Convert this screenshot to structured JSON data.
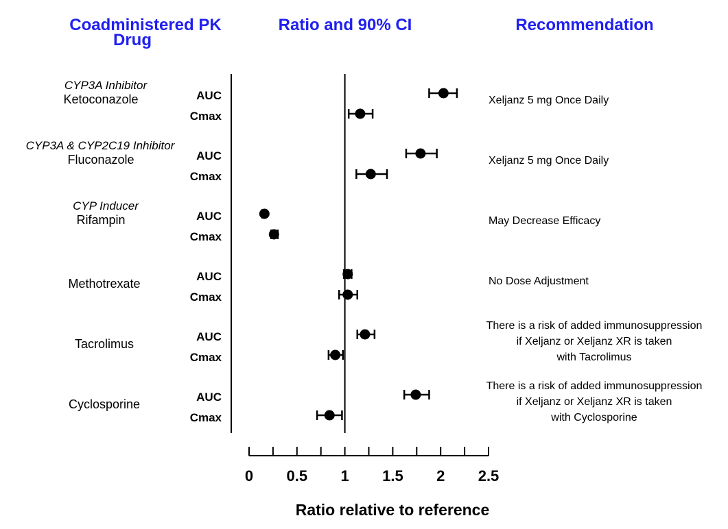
{
  "headers": {
    "drug_line1": "Coadministered PK",
    "drug_line2": "Drug",
    "ratio": "Ratio and 90% CI",
    "recommendation": "Recommendation"
  },
  "chart_data": {
    "type": "scatter",
    "xlabel": "Ratio relative to reference",
    "xlim": [
      0,
      2.5
    ],
    "xticks": [
      "0",
      "0.5",
      "1",
      "1.5",
      "2",
      "2.5"
    ],
    "minor_tick_step": 0.25,
    "reference_line": 1,
    "groups": [
      {
        "category": "CYP3A Inhibitor",
        "drug": "Ketoconazole",
        "recommendation": [
          "Xeljanz 5 mg Once Daily"
        ],
        "metrics": [
          {
            "label": "AUC",
            "ratio": 2.03,
            "ci": [
              1.88,
              2.17
            ]
          },
          {
            "label": "Cmax",
            "ratio": 1.16,
            "ci": [
              1.04,
              1.29
            ]
          }
        ]
      },
      {
        "category": "CYP3A & CYP2C19 Inhibitor",
        "drug": "Fluconazole",
        "recommendation": [
          "Xeljanz 5 mg Once Daily"
        ],
        "metrics": [
          {
            "label": "AUC",
            "ratio": 1.79,
            "ci": [
              1.64,
              1.96
            ]
          },
          {
            "label": "Cmax",
            "ratio": 1.27,
            "ci": [
              1.12,
              1.44
            ]
          }
        ]
      },
      {
        "category": "CYP Inducer",
        "drug": "Rifampin",
        "recommendation": [
          "May Decrease Efficacy"
        ],
        "metrics": [
          {
            "label": "AUC",
            "ratio": 0.16,
            "ci": [
              0.14,
              0.17
            ]
          },
          {
            "label": "Cmax",
            "ratio": 0.26,
            "ci": [
              0.23,
              0.3
            ]
          }
        ]
      },
      {
        "category": "",
        "drug": "Methotrexate",
        "recommendation": [
          "No Dose Adjustment"
        ],
        "metrics": [
          {
            "label": "AUC",
            "ratio": 1.03,
            "ci": [
              0.99,
              1.07
            ]
          },
          {
            "label": "Cmax",
            "ratio": 1.03,
            "ci": [
              0.94,
              1.13
            ]
          }
        ]
      },
      {
        "category": "",
        "drug": "Tacrolimus",
        "recommendation": [
          "There is a risk of added immunosuppression",
          "if Xeljanz or Xeljanz XR is taken",
          "with Tacrolimus"
        ],
        "metrics": [
          {
            "label": "AUC",
            "ratio": 1.21,
            "ci": [
              1.13,
              1.31
            ]
          },
          {
            "label": "Cmax",
            "ratio": 0.9,
            "ci": [
              0.83,
              0.98
            ]
          }
        ]
      },
      {
        "category": "",
        "drug": "Cyclosporine",
        "recommendation": [
          "There is a risk of added immunosuppression",
          "if Xeljanz or Xeljanz XR is taken",
          "with Cyclosporine"
        ],
        "metrics": [
          {
            "label": "AUC",
            "ratio": 1.74,
            "ci": [
              1.62,
              1.88
            ]
          },
          {
            "label": "Cmax",
            "ratio": 0.84,
            "ci": [
              0.71,
              0.97
            ]
          }
        ]
      }
    ]
  }
}
